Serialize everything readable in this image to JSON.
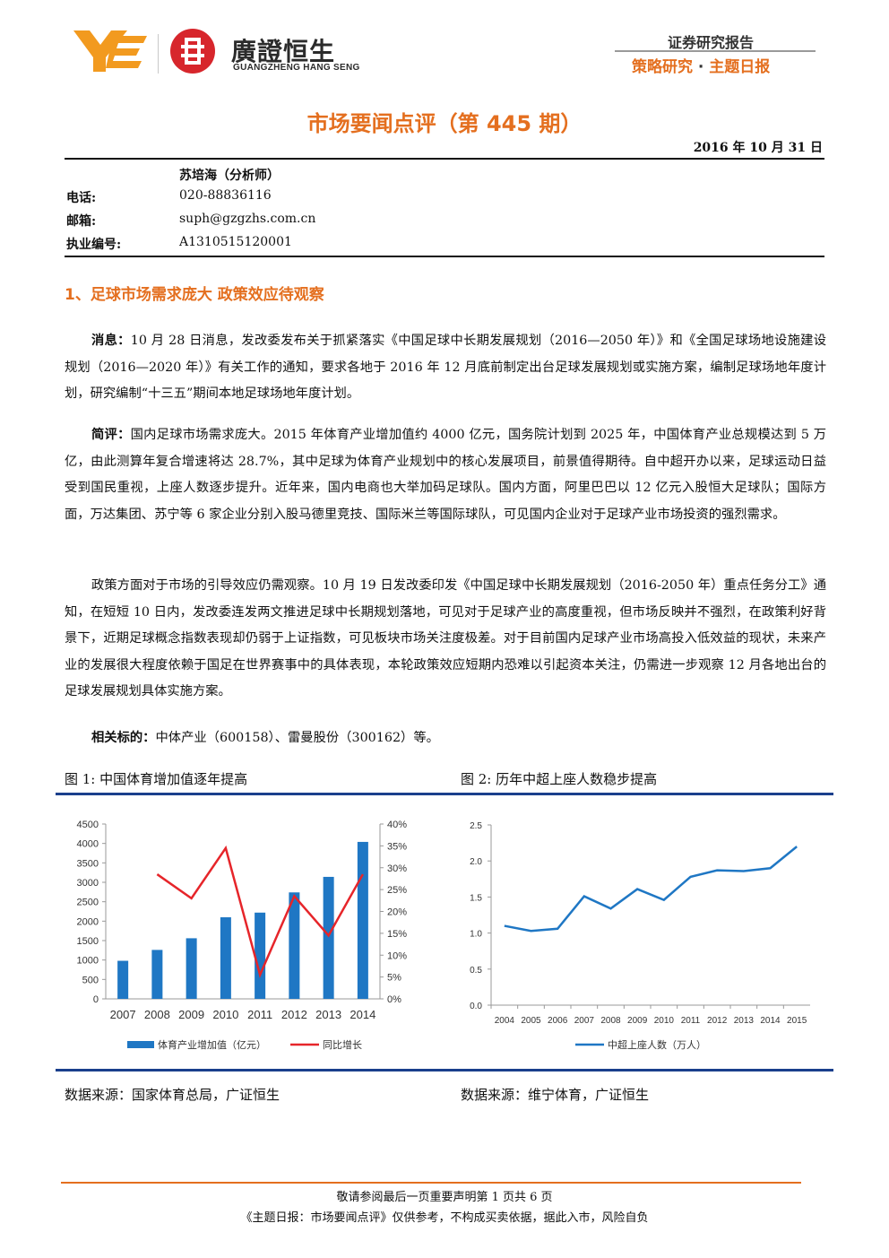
{
  "header": {
    "logo_cn": "廣證恒生",
    "logo_en": "GUANGZHENG HANG SENG",
    "report_type": "证券研究报告",
    "report_category": "策略研究",
    "report_series": "主题日报"
  },
  "title": "市场要闻点评（第 445 期）",
  "date": "2016 年 10 月 31 日",
  "analyst": {
    "name": "苏培海（分析师）",
    "phone_label": "电话:",
    "phone": "020-88836116",
    "email_label": "邮箱:",
    "email": "suph@gzgzhs.com.cn",
    "license_label": "执业编号:",
    "license": "A1310515120001"
  },
  "section1": {
    "title": "1、足球市场需求庞大 政策效应待观察",
    "p1_label": "消息：",
    "p1_text": "10 月 28 日消息，发改委发布关于抓紧落实《中国足球中长期发展规划（2016—2050 年）》和《全国足球场地设施建设规划（2016—2020 年）》有关工作的通知，要求各地于 2016 年 12 月底前制定出台足球发展规划或实施方案，编制足球场地年度计划，研究编制“十三五”期间本地足球场地年度计划。",
    "p2_label": "简评：",
    "p2_text": "国内足球市场需求庞大。2015 年体育产业增加值约 4000 亿元，国务院计划到 2025 年，中国体育产业总规模达到 5 万亿，由此测算年复合增速将达 28.7%，其中足球为体育产业规划中的核心发展项目，前景值得期待。自中超开办以来，足球运动日益受到国民重视，上座人数逐步提升。近年来，国内电商也大举加码足球队。国内方面，阿里巴巴以 12 亿元入股恒大足球队；国际方面，万达集团、苏宁等 6 家企业分别入股马德里竞技、国际米兰等国际球队，可见国内企业对于足球产业市场投资的强烈需求。",
    "p3_text": "政策方面对于市场的引导效应仍需观察。10 月 19 日发改委印发《中国足球中长期发展规划（2016-2050 年）重点任务分工》通知，在短短 10 日内，发改委连发两文推进足球中长期规划落地，可见对于足球产业的高度重视，但市场反映并不强烈，在政策利好背景下，近期足球概念指数表现却仍弱于上证指数，可见板块市场关注度极差。对于目前国内足球产业市场高投入低效益的现状，未来产业的发展很大程度依赖于国足在世界赛事中的具体表现，本轮政策效应短期内恐难以引起资本关注，仍需进一步观察 12 月各地出台的足球发展规划具体实施方案。",
    "p4_label": "相关标的：",
    "p4_text": "中体产业（600158）、雷曼股份（300162）等。"
  },
  "figures": {
    "fig1_title": "图 1:  中国体育增加值逐年提高",
    "fig2_title": "图 2:  历年中超上座人数稳步提高",
    "fig1_source": "数据来源：国家体育总局，广证恒生",
    "fig2_source": "数据来源：维宁体育，广证恒生"
  },
  "chart_data": [
    {
      "type": "bar",
      "categories": [
        "2007",
        "2008",
        "2009",
        "2010",
        "2011",
        "2012",
        "2013",
        "2014"
      ],
      "series": [
        {
          "name": "体育产业增加值（亿元）",
          "type": "bar",
          "axis": "left",
          "color": "#1f77c4",
          "values": [
            980,
            1260,
            1560,
            2100,
            2220,
            2740,
            3140,
            4040
          ]
        },
        {
          "name": "同比增长",
          "type": "line",
          "axis": "right",
          "color": "#e6252a",
          "values": [
            null,
            0.285,
            0.23,
            0.345,
            0.055,
            0.235,
            0.145,
            0.285
          ]
        }
      ],
      "ylim_left": [
        0,
        4500
      ],
      "yticks_left": [
        "0",
        "500",
        "1000",
        "1500",
        "2000",
        "2500",
        "3000",
        "3500",
        "4000",
        "4500"
      ],
      "ylim_right": [
        0,
        0.4
      ],
      "yticks_right": [
        "0%",
        "5%",
        "10%",
        "15%",
        "20%",
        "25%",
        "30%",
        "35%",
        "40%"
      ],
      "legend": "bottom"
    },
    {
      "type": "line",
      "x": [
        "2004",
        "2005",
        "2006",
        "2007",
        "2008",
        "2009",
        "2010",
        "2011",
        "2012",
        "2013",
        "2014",
        "2015"
      ],
      "series": [
        {
          "name": "中超上座人数（万人）",
          "color": "#1f77c4",
          "values": [
            1.1,
            1.03,
            1.06,
            1.51,
            1.34,
            1.61,
            1.46,
            1.78,
            1.87,
            1.86,
            1.9,
            2.2
          ]
        }
      ],
      "ylim": [
        0,
        2.5
      ],
      "yticks": [
        "0.0",
        "0.5",
        "1.0",
        "1.5",
        "2.0",
        "2.5"
      ],
      "legend": "bottom"
    }
  ],
  "footer": {
    "line1": "敬请参阅最后一页重要声明第 1 页共 6 页",
    "line2": "《主题日报：市场要闻点评》仅供参考，不构成买卖依据，据此入市，风险自负"
  }
}
